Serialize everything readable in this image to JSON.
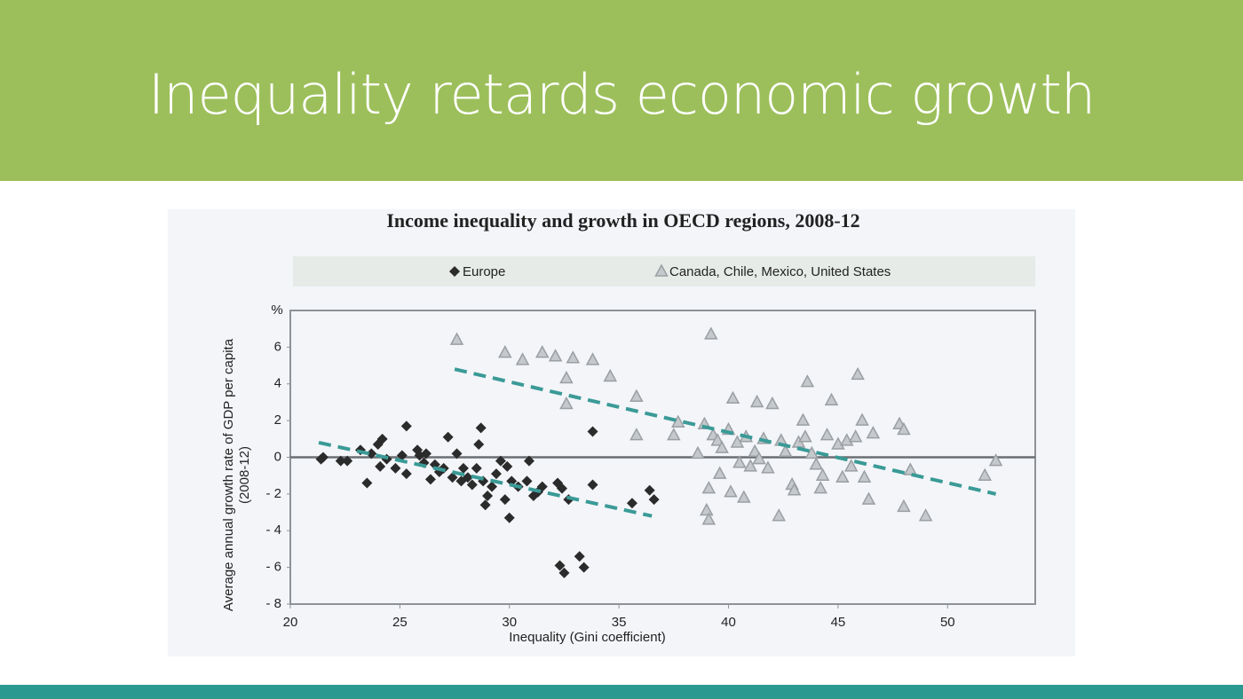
{
  "slide_title": "Inequality retards economic growth",
  "chart_data": {
    "type": "scatter",
    "title": "Income inequality and growth in OECD regions, 2008-12",
    "xlabel": "Inequality (Gini coefficient)",
    "ylabel": [
      "Average annual growth rate of GDP per capita",
      "(2008-12)"
    ],
    "y_unit": "%",
    "xlim": [
      20,
      54
    ],
    "ylim": [
      -8,
      8
    ],
    "xticks": [
      20,
      25,
      30,
      35,
      40,
      45,
      50
    ],
    "yticks": [
      {
        "value": -8,
        "label": "- 8"
      },
      {
        "value": -6,
        "label": "- 6"
      },
      {
        "value": -4,
        "label": "- 4"
      },
      {
        "value": -2,
        "label": "- 2"
      },
      0,
      2,
      4,
      6
    ],
    "hline": 0,
    "legend": "top",
    "series": [
      {
        "name": "Europe",
        "color": "#2b2b2b",
        "marker": "diamond",
        "trend_color": "#3a9a96",
        "x": [
          21.4,
          21.5,
          22.3,
          22.6,
          23.2,
          23.5,
          23.7,
          24,
          24.2,
          24.1,
          24.4,
          24.8,
          25.1,
          25.3,
          25.3,
          25.8,
          25.9,
          26.1,
          26.2,
          26.4,
          26.6,
          26.8,
          27,
          27.2,
          27.4,
          27.6,
          27.8,
          27.9,
          28.1,
          28.3,
          28.5,
          28.6,
          28.7,
          28.8,
          28.9,
          29,
          29.2,
          29.4,
          29.6,
          29.8,
          29.9,
          30,
          30.1,
          30.4,
          30.8,
          30.9,
          31.1,
          31.3,
          31.5,
          32.2,
          32.4,
          32.3,
          32.5,
          32.7,
          33.2,
          33.4,
          33.8,
          33.8,
          35.6,
          36.4,
          36.6
        ],
        "values": [
          -0.1,
          0,
          -0.2,
          -0.2,
          0.4,
          -1.4,
          0.2,
          0.7,
          1.0,
          -0.5,
          -0.1,
          -0.6,
          0.1,
          -0.9,
          1.7,
          0.4,
          0.1,
          -0.3,
          0.2,
          -1.2,
          -0.4,
          -0.8,
          -0.6,
          1.1,
          -1.1,
          0.2,
          -1.3,
          -0.6,
          -1.1,
          -1.5,
          -0.6,
          0.7,
          1.6,
          -1.3,
          -2.6,
          -2.1,
          -1.6,
          -0.9,
          -0.2,
          -2.3,
          -0.5,
          -3.3,
          -1.3,
          -1.6,
          -1.3,
          -0.2,
          -2.1,
          -1.9,
          -1.6,
          -1.4,
          -1.7,
          -5.9,
          -6.3,
          -2.3,
          -5.4,
          -6.0,
          -1.5,
          1.4,
          -2.5,
          -1.8,
          -2.3
        ],
        "trend": {
          "x": [
            21.3,
            36.5
          ],
          "y": [
            0.8,
            -3.2
          ]
        }
      },
      {
        "name": "Canada, Chile, Mexico, United States",
        "color": "#9a9fa3",
        "marker": "triangle",
        "trend_color": "#3a9a96",
        "x": [
          27.6,
          29.8,
          30.6,
          31.5,
          32.1,
          32.6,
          32.6,
          32.9,
          33.8,
          34.6,
          35.8,
          35.8,
          37.5,
          37.7,
          38.6,
          38.9,
          39.2,
          39.1,
          39,
          39.1,
          39.3,
          39.5,
          39.6,
          39.7,
          40,
          40.2,
          40.1,
          40.4,
          40.5,
          40.7,
          40.8,
          41,
          41.2,
          41.3,
          41.4,
          41.6,
          41.8,
          42,
          42.3,
          42.4,
          42.6,
          42.9,
          43,
          43.2,
          43.4,
          43.5,
          43.6,
          43.8,
          44,
          44.2,
          44.3,
          44.5,
          44.7,
          45,
          45.2,
          45.4,
          45.6,
          45.8,
          45.9,
          46.1,
          46.2,
          46.4,
          46.6,
          47.8,
          48,
          48.3,
          48,
          49,
          51.7,
          52.2
        ],
        "values": [
          6.4,
          5.7,
          5.3,
          5.7,
          5.5,
          4.3,
          2.9,
          5.4,
          5.3,
          4.4,
          3.3,
          1.2,
          1.2,
          1.9,
          0.2,
          1.8,
          6.7,
          -1.7,
          -2.9,
          -3.4,
          1.2,
          0.9,
          -0.9,
          0.5,
          1.5,
          3.2,
          -1.9,
          0.8,
          -0.3,
          -2.2,
          1.1,
          -0.5,
          0.3,
          3.0,
          -0.1,
          1.0,
          -0.6,
          2.9,
          -3.2,
          0.9,
          0.3,
          -1.5,
          -1.8,
          0.8,
          2.0,
          1.1,
          4.1,
          0.2,
          -0.4,
          -1.7,
          -1.0,
          1.2,
          3.1,
          0.7,
          -1.1,
          0.9,
          -0.5,
          1.1,
          4.5,
          2.0,
          -1.1,
          -2.3,
          1.3,
          1.8,
          1.5,
          -0.7,
          -2.7,
          -3.2,
          -1.0,
          -0.2
        ],
        "trend": {
          "x": [
            27.5,
            52.2
          ],
          "y": [
            4.8,
            -2.0
          ]
        }
      }
    ]
  }
}
